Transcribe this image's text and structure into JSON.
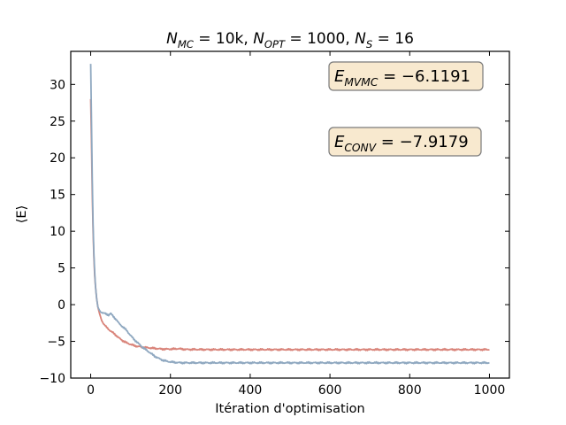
{
  "chart_data": {
    "type": "line",
    "title": {
      "parts": [
        {
          "base": "N",
          "sub": "MC",
          "rest": " = 10k, "
        },
        {
          "base": "N",
          "sub": "OPT",
          "rest": " = 1000, "
        },
        {
          "base": "N",
          "sub": "S",
          "rest": " = 16"
        }
      ]
    },
    "xlabel": "Itération d'optimisation",
    "ylabel": "⟨E⟩",
    "xlim": [
      -50,
      1050
    ],
    "ylim": [
      -10,
      34.5
    ],
    "xticks": [
      0,
      200,
      400,
      600,
      800,
      1000
    ],
    "yticks": [
      -10,
      -5,
      0,
      5,
      10,
      15,
      20,
      25,
      30
    ],
    "grid": false,
    "colors": {
      "series_red": "#d9847a",
      "series_blue": "#8fa8c0",
      "annotation_fill": "#f8e9cf",
      "annotation_edge": "#7a7a7a"
    },
    "annotations": [
      {
        "base": "E",
        "sub": "MVMC",
        "rest": " = −6.1191"
      },
      {
        "base": "E",
        "sub": "CONV",
        "rest": " = −7.9179"
      }
    ],
    "series": [
      {
        "color": "#d9847a",
        "x": [
          0,
          2,
          4,
          6,
          8,
          10,
          12,
          15,
          18,
          22,
          26,
          30,
          35,
          40,
          50,
          60,
          70,
          80,
          90,
          100,
          110,
          120,
          130,
          140,
          150,
          160,
          170,
          180,
          200,
          220,
          240,
          260,
          300,
          400,
          500,
          600,
          700,
          800,
          900,
          1000
        ],
        "y": [
          28,
          22,
          15,
          10,
          6.5,
          4.0,
          2.5,
          0.8,
          -0.3,
          -1.2,
          -1.9,
          -2.4,
          -2.8,
          -3.1,
          -3.6,
          -4.0,
          -4.5,
          -4.9,
          -5.2,
          -5.4,
          -5.6,
          -5.7,
          -5.8,
          -5.85,
          -5.9,
          -5.95,
          -6.0,
          -6.05,
          -6.05,
          -6.0,
          -6.1,
          -6.1,
          -6.12,
          -6.12,
          -6.12,
          -6.12,
          -6.12,
          -6.12,
          -6.12,
          -6.12
        ]
      },
      {
        "color": "#8fa8c0",
        "x": [
          0,
          2,
          4,
          6,
          8,
          10,
          12,
          15,
          18,
          22,
          26,
          30,
          35,
          40,
          45,
          50,
          55,
          60,
          65,
          70,
          80,
          90,
          100,
          110,
          120,
          130,
          140,
          150,
          160,
          170,
          180,
          190,
          200,
          210,
          220,
          230,
          240,
          260,
          300,
          400,
          500,
          600,
          700,
          800,
          900,
          1000
        ],
        "y": [
          32.8,
          25,
          17,
          11,
          7,
          4.5,
          2.5,
          0.8,
          -0.3,
          -0.8,
          -1.0,
          -1.1,
          -1.2,
          -1.3,
          -1.4,
          -1.2,
          -1.5,
          -1.8,
          -2.1,
          -2.5,
          -3.0,
          -3.5,
          -4.2,
          -4.8,
          -5.3,
          -5.8,
          -6.2,
          -6.6,
          -7.0,
          -7.3,
          -7.55,
          -7.7,
          -7.8,
          -7.85,
          -7.9,
          -7.92,
          -7.92,
          -7.92,
          -7.92,
          -7.92,
          -7.92,
          -7.92,
          -7.92,
          -7.92,
          -7.92,
          -7.92
        ]
      }
    ]
  }
}
